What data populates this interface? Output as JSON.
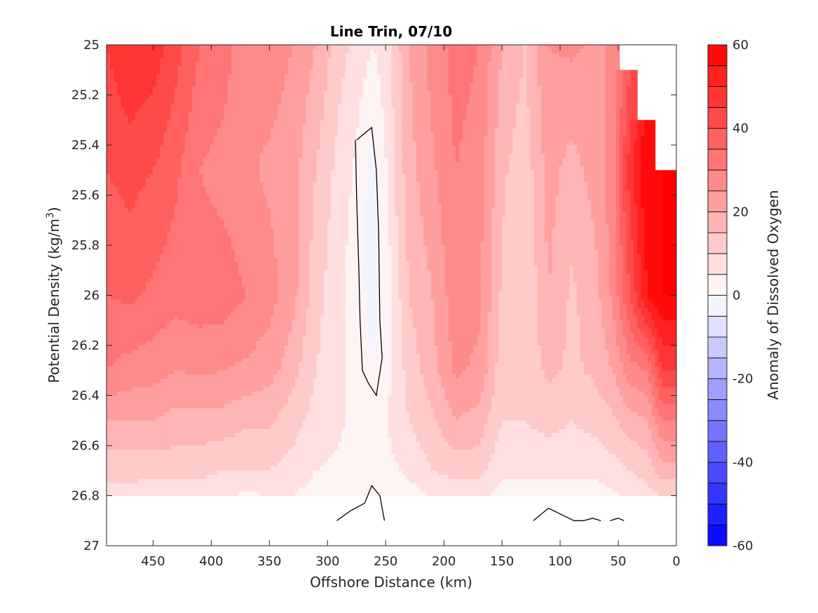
{
  "chart_data": {
    "type": "heatmap",
    "subtype": "filled-contour",
    "title": "Line Trin, 07/10",
    "xlabel": "Offshore Distance (km)",
    "ylabel": "Potential Density (kg/m",
    "ylabel_sup": "3",
    "ylabel_close": ")",
    "colorbar_label": "Anomaly of Dissolved Oxygen",
    "xlim": [
      490,
      0
    ],
    "x_reversed": true,
    "ylim": [
      25,
      27
    ],
    "y_reversed": true,
    "x_ticks": [
      450,
      400,
      350,
      300,
      250,
      200,
      150,
      100,
      50,
      0
    ],
    "y_ticks": [
      25,
      25.2,
      25.4,
      25.6,
      25.8,
      26,
      26.2,
      26.4,
      26.6,
      26.8,
      27
    ],
    "colorbar_range": [
      -60,
      60
    ],
    "colorbar_ticks": [
      60,
      40,
      20,
      0,
      -20,
      -40,
      -60
    ],
    "colorbar_levels": [
      -60,
      -55,
      -50,
      -45,
      -40,
      -35,
      -30,
      -25,
      -20,
      -15,
      -10,
      -5,
      0,
      5,
      10,
      15,
      20,
      25,
      30,
      35,
      40,
      45,
      50,
      55,
      60
    ],
    "colormap": "blue-white-red diverging",
    "colors": {
      "max_positive": "#ff0000",
      "zero": "#ffffff",
      "max_negative": "#0000ff"
    },
    "columns": [
      {
        "x": 490,
        "profile": [
          [
            25,
            45
          ],
          [
            25.5,
            40
          ],
          [
            26,
            35
          ],
          [
            26.3,
            30
          ],
          [
            26.5,
            20
          ],
          [
            26.7,
            12
          ],
          [
            26.8,
            8
          ]
        ]
      },
      {
        "x": 470,
        "profile": [
          [
            25,
            50
          ],
          [
            25.5,
            42
          ],
          [
            26,
            36
          ],
          [
            26.3,
            28
          ],
          [
            26.5,
            20
          ],
          [
            26.7,
            12
          ],
          [
            26.8,
            8
          ]
        ]
      },
      {
        "x": 450,
        "profile": [
          [
            25,
            48
          ],
          [
            25.5,
            40
          ],
          [
            26,
            34
          ],
          [
            26.3,
            27
          ],
          [
            26.5,
            20
          ],
          [
            26.7,
            12
          ],
          [
            26.8,
            6
          ]
        ]
      },
      {
        "x": 430,
        "profile": [
          [
            25,
            42
          ],
          [
            25.5,
            36
          ],
          [
            26,
            32
          ],
          [
            26.3,
            25
          ],
          [
            26.5,
            18
          ],
          [
            26.7,
            12
          ],
          [
            26.8,
            6
          ]
        ]
      },
      {
        "x": 410,
        "profile": [
          [
            25,
            35
          ],
          [
            25.5,
            30
          ],
          [
            26,
            33
          ],
          [
            26.3,
            26
          ],
          [
            26.5,
            18
          ],
          [
            26.7,
            12
          ],
          [
            26.8,
            6
          ]
        ]
      },
      {
        "x": 390,
        "profile": [
          [
            25,
            33
          ],
          [
            25.5,
            28
          ],
          [
            26,
            33
          ],
          [
            26.3,
            25
          ],
          [
            26.5,
            18
          ],
          [
            26.7,
            10
          ],
          [
            26.8,
            6
          ]
        ]
      },
      {
        "x": 370,
        "profile": [
          [
            25,
            25
          ],
          [
            25.5,
            26
          ],
          [
            26,
            30
          ],
          [
            26.3,
            24
          ],
          [
            26.5,
            16
          ],
          [
            26.7,
            10
          ],
          [
            26.8,
            4
          ]
        ]
      },
      {
        "x": 350,
        "profile": [
          [
            25,
            28
          ],
          [
            25.5,
            24
          ],
          [
            26,
            27
          ],
          [
            26.3,
            22
          ],
          [
            26.5,
            16
          ],
          [
            26.7,
            10
          ],
          [
            26.8,
            5
          ]
        ]
      },
      {
        "x": 330,
        "profile": [
          [
            25,
            25
          ],
          [
            25.5,
            22
          ],
          [
            26,
            22
          ],
          [
            26.3,
            17
          ],
          [
            26.5,
            12
          ],
          [
            26.7,
            8
          ],
          [
            26.8,
            5
          ]
        ]
      },
      {
        "x": 310,
        "profile": [
          [
            25,
            20
          ],
          [
            25.5,
            15
          ],
          [
            26,
            12
          ],
          [
            26.3,
            10
          ],
          [
            26.5,
            8
          ],
          [
            26.7,
            5
          ],
          [
            26.8,
            3
          ]
        ]
      },
      {
        "x": 290,
        "profile": [
          [
            25,
            12
          ],
          [
            25.5,
            8
          ],
          [
            26,
            6
          ],
          [
            26.3,
            6
          ],
          [
            26.5,
            6
          ],
          [
            26.7,
            4
          ],
          [
            26.8,
            2
          ]
        ]
      },
      {
        "x": 275,
        "profile": [
          [
            25,
            8
          ],
          [
            25.5,
            4
          ],
          [
            26,
            2
          ],
          [
            26.3,
            2
          ],
          [
            26.5,
            3
          ],
          [
            26.7,
            2
          ],
          [
            26.8,
            0
          ]
        ]
      },
      {
        "x": 260,
        "profile": [
          [
            25,
            5
          ],
          [
            25.5,
            -3
          ],
          [
            25.8,
            -6
          ],
          [
            26,
            -2
          ],
          [
            26.3,
            0
          ],
          [
            26.5,
            2
          ],
          [
            26.7,
            1
          ],
          [
            26.8,
            0
          ]
        ]
      },
      {
        "x": 245,
        "profile": [
          [
            25,
            10
          ],
          [
            25.5,
            8
          ],
          [
            26,
            5
          ],
          [
            26.3,
            5
          ],
          [
            26.5,
            6
          ],
          [
            26.7,
            4
          ],
          [
            26.8,
            2
          ]
        ]
      },
      {
        "x": 230,
        "profile": [
          [
            25,
            20
          ],
          [
            25.5,
            18
          ],
          [
            26,
            15
          ],
          [
            26.3,
            12
          ],
          [
            26.5,
            10
          ],
          [
            26.7,
            6
          ],
          [
            26.8,
            3
          ]
        ]
      },
      {
        "x": 210,
        "profile": [
          [
            25,
            27
          ],
          [
            25.5,
            24
          ],
          [
            26,
            20
          ],
          [
            26.3,
            18
          ],
          [
            26.5,
            14
          ],
          [
            26.7,
            10
          ],
          [
            26.8,
            5
          ]
        ]
      },
      {
        "x": 190,
        "profile": [
          [
            25,
            32
          ],
          [
            25.5,
            30
          ],
          [
            26,
            28
          ],
          [
            26.3,
            26
          ],
          [
            26.5,
            20
          ],
          [
            26.7,
            12
          ],
          [
            26.8,
            6
          ]
        ]
      },
      {
        "x": 170,
        "profile": [
          [
            25,
            30
          ],
          [
            25.5,
            28
          ],
          [
            26,
            26
          ],
          [
            26.3,
            24
          ],
          [
            26.5,
            18
          ],
          [
            26.7,
            12
          ],
          [
            26.8,
            6
          ]
        ]
      },
      {
        "x": 150,
        "profile": [
          [
            25,
            20
          ],
          [
            25.5,
            16
          ],
          [
            26,
            14
          ],
          [
            26.3,
            12
          ],
          [
            26.5,
            10
          ],
          [
            26.7,
            6
          ],
          [
            26.8,
            3
          ]
        ]
      },
      {
        "x": 130,
        "profile": [
          [
            25,
            15
          ],
          [
            25.5,
            12
          ],
          [
            26,
            10
          ],
          [
            26.3,
            12
          ],
          [
            26.5,
            10
          ],
          [
            26.7,
            6
          ],
          [
            26.8,
            3
          ]
        ]
      },
      {
        "x": 110,
        "profile": [
          [
            25,
            25
          ],
          [
            25.5,
            22
          ],
          [
            26,
            20
          ],
          [
            26.3,
            16
          ],
          [
            26.5,
            12
          ],
          [
            26.7,
            6
          ],
          [
            26.8,
            3
          ]
        ]
      },
      {
        "x": 90,
        "profile": [
          [
            25,
            26
          ],
          [
            25.5,
            18
          ],
          [
            26,
            14
          ],
          [
            26.3,
            14
          ],
          [
            26.5,
            10
          ],
          [
            26.7,
            6
          ],
          [
            26.8,
            3
          ]
        ]
      },
      {
        "x": 70,
        "profile": [
          [
            25,
            24
          ],
          [
            25.5,
            22
          ],
          [
            26,
            18
          ],
          [
            26.3,
            16
          ],
          [
            26.5,
            12
          ],
          [
            26.7,
            6
          ],
          [
            26.8,
            3
          ]
        ]
      },
      {
        "x": 55,
        "profile": [
          [
            25,
            26
          ],
          [
            25.5,
            28
          ],
          [
            26,
            26
          ],
          [
            26.3,
            20
          ],
          [
            26.5,
            14
          ],
          [
            26.7,
            8
          ],
          [
            26.8,
            4
          ]
        ]
      },
      {
        "x": 40,
        "profile": [
          [
            25.1,
            40
          ],
          [
            25.5,
            48
          ],
          [
            26,
            40
          ],
          [
            26.3,
            28
          ],
          [
            26.5,
            18
          ],
          [
            26.7,
            10
          ],
          [
            26.8,
            6
          ]
        ]
      },
      {
        "x": 25,
        "profile": [
          [
            25.3,
            58
          ],
          [
            25.5,
            60
          ],
          [
            26,
            55
          ],
          [
            26.3,
            30
          ],
          [
            26.5,
            20
          ],
          [
            26.7,
            12
          ],
          [
            26.8,
            8
          ]
        ]
      },
      {
        "x": 12,
        "profile": [
          [
            25.5,
            60
          ],
          [
            26,
            60
          ],
          [
            26.3,
            45
          ],
          [
            26.5,
            30
          ],
          [
            26.7,
            18
          ],
          [
            26.8,
            10
          ]
        ]
      }
    ],
    "zero_contour_lines": [
      {
        "points": [
          [
            275,
            25.38
          ],
          [
            262,
            25.33
          ],
          [
            258,
            25.5
          ],
          [
            256,
            25.75
          ],
          [
            255,
            26.1
          ],
          [
            253,
            26.25
          ],
          [
            258,
            26.4
          ],
          [
            265,
            26.35
          ],
          [
            270,
            26.3
          ],
          [
            272,
            26.1
          ],
          [
            273,
            25.9
          ],
          [
            275,
            25.6
          ],
          [
            276,
            25.38
          ]
        ]
      },
      {
        "points": [
          [
            292,
            26.9
          ],
          [
            280,
            26.86
          ],
          [
            268,
            26.83
          ],
          [
            262,
            26.76
          ],
          [
            255,
            26.8
          ],
          [
            251,
            26.9
          ]
        ]
      },
      {
        "points": [
          [
            123,
            26.9
          ],
          [
            110,
            26.85
          ],
          [
            97,
            26.88
          ],
          [
            88,
            26.9
          ],
          [
            80,
            26.9
          ],
          [
            72,
            26.89
          ],
          [
            65,
            26.9
          ]
        ]
      },
      {
        "points": [
          [
            57,
            26.9
          ],
          [
            50,
            26.89
          ],
          [
            45,
            26.9
          ]
        ]
      }
    ],
    "masked_region_note": "blank area top-right beyond shelf and bottom band below 26.8"
  }
}
